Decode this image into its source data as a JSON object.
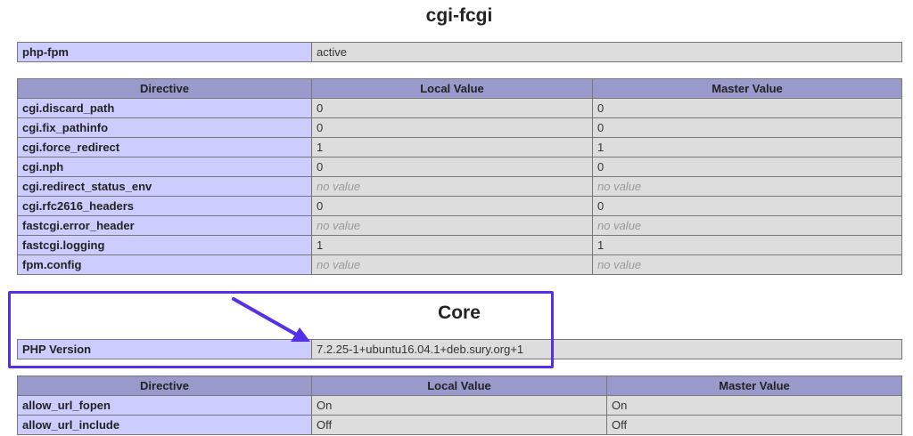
{
  "sections": [
    {
      "title": "cgi-fcgi",
      "info": {
        "label": "php-fpm",
        "value": "active"
      },
      "headers": [
        "Directive",
        "Local Value",
        "Master Value"
      ],
      "rows": [
        [
          "cgi.discard_path",
          "0",
          "0"
        ],
        [
          "cgi.fix_pathinfo",
          "0",
          "0"
        ],
        [
          "cgi.force_redirect",
          "1",
          "1"
        ],
        [
          "cgi.nph",
          "0",
          "0"
        ],
        [
          "cgi.redirect_status_env",
          "no value",
          "no value"
        ],
        [
          "cgi.rfc2616_headers",
          "0",
          "0"
        ],
        [
          "fastcgi.error_header",
          "no value",
          "no value"
        ],
        [
          "fastcgi.logging",
          "1",
          "1"
        ],
        [
          "fpm.config",
          "no value",
          "no value"
        ]
      ]
    },
    {
      "title": "Core",
      "info": {
        "label": "PHP Version",
        "value": "7.2.25-1+ubuntu16.04.1+deb.sury.org+1"
      },
      "headers": [
        "Directive",
        "Local Value",
        "Master Value"
      ],
      "rows": [
        [
          "allow_url_fopen",
          "On",
          "On"
        ],
        [
          "allow_url_include",
          "Off",
          "Off"
        ]
      ]
    }
  ],
  "annotation": {
    "color": "#5530e8",
    "icon": "arrow-icon"
  }
}
